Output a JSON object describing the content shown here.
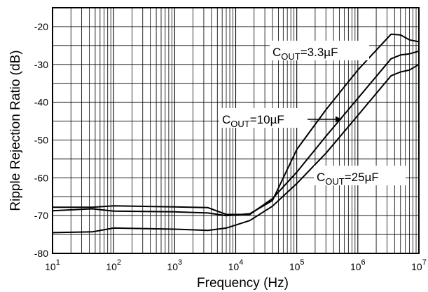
{
  "chart_data": {
    "type": "line",
    "title": "",
    "xlabel": "Frequency (Hz)",
    "ylabel": "Ripple Rejection Ratio (dB)",
    "xscale": "log",
    "xlim": [
      10,
      10000000
    ],
    "ylim": [
      -80,
      -15
    ],
    "grid": true,
    "x_ticks": [
      {
        "base": "10",
        "exp": "1"
      },
      {
        "base": "10",
        "exp": "2"
      },
      {
        "base": "10",
        "exp": "3"
      },
      {
        "base": "10",
        "exp": "4"
      },
      {
        "base": "10",
        "exp": "5"
      },
      {
        "base": "10",
        "exp": "6"
      },
      {
        "base": "10",
        "exp": "7"
      }
    ],
    "y_ticks": [
      "-20",
      "-30",
      "-40",
      "-50",
      "-60",
      "-70",
      "-80"
    ],
    "series": [
      {
        "name": "COUT=3.3µF",
        "x": [
          10,
          45,
          100,
          1000,
          3500,
          7000,
          17000,
          40000,
          100000,
          300000,
          1000000,
          3500000,
          5000000,
          7000000,
          10000000
        ],
        "y": [
          -68.7,
          -68.2,
          -68.8,
          -69.0,
          -69.3,
          -70.0,
          -69.5,
          -66.0,
          -52.5,
          -42.0,
          -31.5,
          -22.0,
          -22.2,
          -23.5,
          -24.0
        ]
      },
      {
        "name": "COUT=10µF",
        "x": [
          10,
          45,
          100,
          1000,
          3500,
          7000,
          17000,
          40000,
          100000,
          300000,
          1000000,
          3500000,
          5000000,
          7000000,
          10000000
        ],
        "y": [
          -67.8,
          -67.8,
          -67.4,
          -67.7,
          -67.9,
          -69.7,
          -69.7,
          -65.5,
          -58.5,
          -49.0,
          -39.0,
          -28.5,
          -27.5,
          -27.2,
          -26.5
        ]
      },
      {
        "name": "COUT=25µF",
        "x": [
          10,
          45,
          100,
          1000,
          3500,
          7000,
          17000,
          40000,
          100000,
          300000,
          1000000,
          3500000,
          5000000,
          7000000,
          10000000
        ],
        "y": [
          -74.5,
          -74.3,
          -73.3,
          -73.6,
          -73.9,
          -73.3,
          -71.3,
          -67.5,
          -61.5,
          -53.5,
          -43.5,
          -33.0,
          -32.0,
          -31.5,
          -30.0
        ]
      }
    ],
    "annotations": [
      {
        "base": "C",
        "sub": "OUT",
        "rest": "=3.3µF",
        "target_series": "COUT=3.3µF"
      },
      {
        "base": "C",
        "sub": "OUT",
        "rest": "=10µF",
        "target_series": "COUT=10µF",
        "arrow": true
      },
      {
        "base": "C",
        "sub": "OUT",
        "rest": "=25µF",
        "target_series": "COUT=25µF"
      }
    ]
  }
}
